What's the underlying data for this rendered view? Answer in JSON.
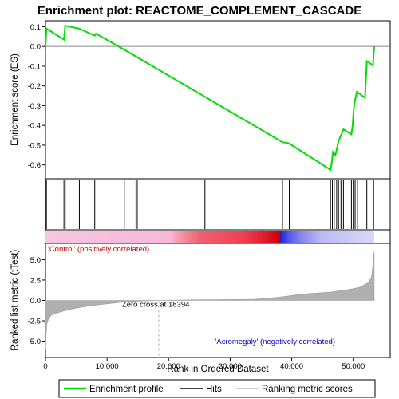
{
  "chart_data": {
    "type": "line",
    "title": "Enrichment plot: REACTOME_COMPLEMENT_CASCADE",
    "xlabel": "Rank in Ordered Dataset",
    "x_range": [
      0,
      56000
    ],
    "x_ticks": [
      0,
      10000,
      20000,
      30000,
      40000,
      50000
    ],
    "x_tick_labels": [
      "0",
      "10,000",
      "20,000",
      "30,000",
      "40,000",
      "50,000"
    ],
    "es_panel": {
      "ylabel": "Enrichment score (ES)",
      "ylim": [
        -0.67,
        0.13
      ],
      "y_ticks": [
        0.1,
        0.0,
        -0.1,
        -0.2,
        -0.3,
        -0.4,
        -0.5,
        -0.6
      ],
      "y_tick_labels": [
        "0.1",
        "0.0",
        "-0.1",
        "-0.2",
        "-0.3",
        "-0.4",
        "-0.5",
        "-0.6"
      ],
      "series": [
        {
          "name": "Enrichment profile",
          "color": "#00dd00",
          "x": [
            0,
            150,
            3000,
            3200,
            5500,
            8000,
            8200,
            13000,
            38500,
            39500,
            40000,
            46300,
            46500,
            46700,
            47100,
            47400,
            47600,
            48000,
            48400,
            49700,
            49900,
            50100,
            50300,
            50600,
            51900,
            52200,
            53200,
            53400
          ],
          "y": [
            0.0,
            0.09,
            0.035,
            0.105,
            0.09,
            0.055,
            0.065,
            -0.02,
            -0.485,
            -0.49,
            -0.5,
            -0.625,
            -0.59,
            -0.535,
            -0.55,
            -0.51,
            -0.48,
            -0.45,
            -0.42,
            -0.445,
            -0.4,
            -0.31,
            -0.27,
            -0.23,
            -0.26,
            -0.075,
            -0.095,
            0.0
          ]
        }
      ]
    },
    "hits": [
      150,
      3000,
      3200,
      5500,
      8000,
      12800,
      14700,
      14900,
      25600,
      25900,
      38500,
      39600,
      46300,
      46600,
      46900,
      47300,
      47600,
      48000,
      48400,
      49700,
      50000,
      50300,
      50700,
      52200,
      53300
    ],
    "rank_panel": {
      "ylabel": "Ranked list metric (tTest)",
      "ylim": [
        -7,
        7
      ],
      "y_ticks": [
        5.0,
        2.5,
        0.0,
        -2.5,
        -5.0
      ],
      "y_tick_labels": [
        "5.0",
        "2.5",
        "0.0",
        "-2.5",
        "-5.0"
      ],
      "metric_x": [
        0,
        200,
        500,
        1000,
        2000,
        4000,
        6000,
        9000,
        12000,
        15000,
        18394,
        22000,
        28000,
        34000,
        38000,
        42000,
        46000,
        49000,
        51000,
        52500,
        53000,
        53400
      ],
      "metric_y": [
        -6.0,
        -3.0,
        -2.2,
        -1.8,
        -1.5,
        -1.1,
        -0.8,
        -0.5,
        -0.25,
        -0.1,
        0.0,
        0.05,
        0.1,
        0.15,
        0.4,
        0.8,
        1.0,
        1.3,
        1.6,
        2.2,
        3.0,
        6.0
      ],
      "zero_cross": 18394
    },
    "annotations": {
      "positive": "'Control' (positively correlated)",
      "negative": "'Acromegaly' (negatively correlated)",
      "zero_cross": "Zero cross at 18394"
    },
    "legend": {
      "placement": "bottom",
      "entries": [
        {
          "label": "Enrichment profile",
          "color": "#00dd00"
        },
        {
          "label": "Hits",
          "color": "#000000"
        },
        {
          "label": "Ranking metric scores",
          "color": "#bbbbbb"
        }
      ]
    },
    "colors": {
      "profile": "#00dd00",
      "pos_label": "#cc0000",
      "neg_label": "#0000cc",
      "zero_cross_line": "#aaaaaa",
      "metric_fill": "#b0b0b0"
    }
  }
}
